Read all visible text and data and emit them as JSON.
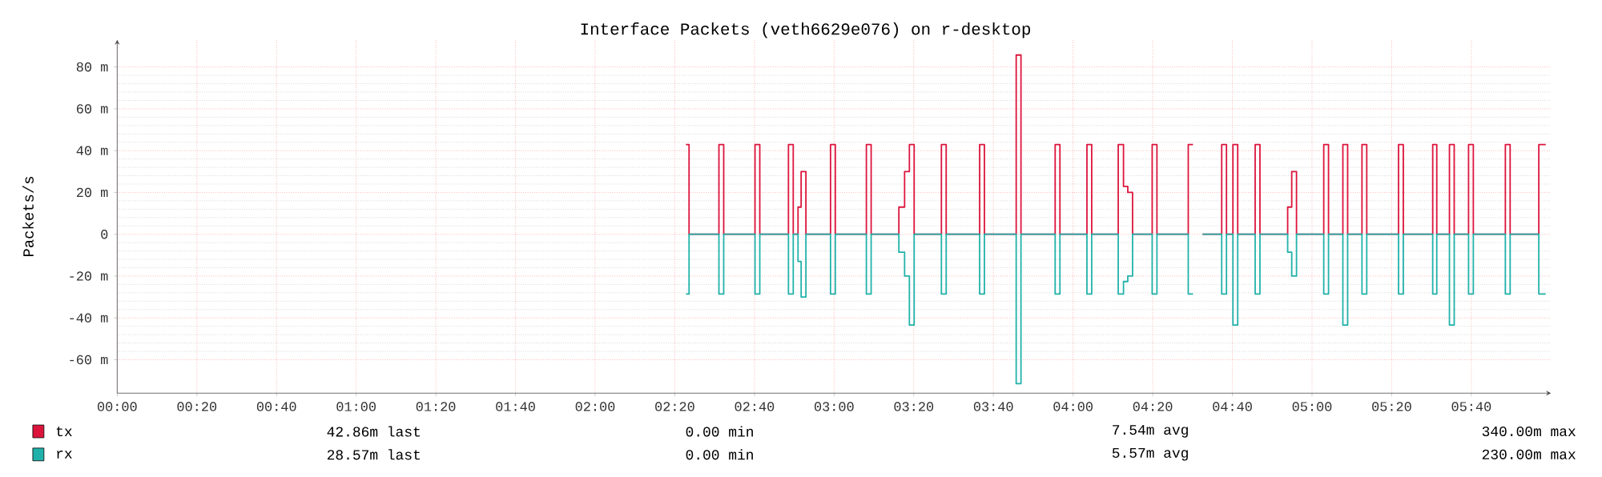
{
  "chart_data": {
    "type": "step",
    "title": "Interface Packets (veth6629e076) on r-desktop",
    "ylabel": "Packets/s",
    "x": [
      2.38,
      2.393,
      2.518,
      2.538,
      2.669,
      2.689,
      2.809,
      2.829,
      2.849,
      2.862,
      2.882,
      2.985,
      3.005,
      3.135,
      3.155,
      3.271,
      3.295,
      3.315,
      3.335,
      3.449,
      3.469,
      3.609,
      3.629,
      3.762,
      3.782,
      3.925,
      3.945,
      4.058,
      4.078,
      4.189,
      4.211,
      4.229,
      4.249,
      4.331,
      4.351,
      4.482,
      4.502,
      4.542,
      4.622,
      4.642,
      4.669,
      4.689,
      4.762,
      4.782,
      4.898,
      4.915,
      4.935,
      5.049,
      5.069,
      5.129,
      5.149,
      5.209,
      5.229,
      5.362,
      5.382,
      5.505,
      5.522,
      5.575,
      5.595,
      5.655,
      5.675,
      5.809,
      5.829,
      5.949,
      5.978
    ],
    "series": [
      {
        "name": "tx",
        "color": "#dc143c",
        "values": [
          42.86,
          0,
          42.86,
          0,
          42.86,
          0,
          42.86,
          0,
          13,
          30,
          0,
          42.86,
          0,
          42.86,
          0,
          13,
          30,
          42.86,
          0,
          42.86,
          0,
          42.86,
          0,
          85.71,
          0,
          42.86,
          0,
          42.86,
          0,
          42.86,
          22.86,
          20,
          0,
          42.86,
          0,
          42.86,
          null,
          0,
          42.86,
          0,
          42.86,
          0,
          42.86,
          0,
          13,
          30,
          0,
          42.86,
          0,
          42.86,
          0,
          42.86,
          0,
          42.86,
          0,
          42.86,
          0,
          42.86,
          0,
          42.86,
          0,
          42.86,
          0,
          42.86,
          42.86
        ]
      },
      {
        "name": "rx",
        "color": "#20b2aa",
        "values": [
          -28.57,
          0,
          -28.57,
          0,
          -28.57,
          0,
          -28.57,
          0,
          -13,
          -30,
          0,
          -28.57,
          0,
          -28.57,
          0,
          -8.6,
          -20,
          -43.4,
          0,
          -28.57,
          0,
          -28.57,
          0,
          -71.43,
          0,
          -28.57,
          0,
          -28.57,
          0,
          -28.57,
          -22.6,
          -20,
          0,
          -28.57,
          0,
          -28.57,
          null,
          0,
          -28.57,
          0,
          -43.4,
          0,
          -28.57,
          0,
          -8.6,
          -20,
          0,
          -28.57,
          0,
          -43.4,
          0,
          -28.57,
          0,
          -28.57,
          0,
          -28.57,
          0,
          -43.4,
          0,
          -28.57,
          0,
          -28.57,
          0,
          -28.57,
          -28.57
        ]
      }
    ],
    "xlim": [
      0,
      6
    ],
    "ylim": [
      -76,
      93
    ],
    "xticks": [
      {
        "value": 0,
        "label": "00:00"
      },
      {
        "value": 0.3333,
        "label": "00:20"
      },
      {
        "value": 0.6667,
        "label": "00:40"
      },
      {
        "value": 1,
        "label": "01:00"
      },
      {
        "value": 1.3333,
        "label": "01:20"
      },
      {
        "value": 1.6667,
        "label": "01:40"
      },
      {
        "value": 2,
        "label": "02:00"
      },
      {
        "value": 2.3333,
        "label": "02:20"
      },
      {
        "value": 2.6667,
        "label": "02:40"
      },
      {
        "value": 3,
        "label": "03:00"
      },
      {
        "value": 3.3333,
        "label": "03:20"
      },
      {
        "value": 3.6667,
        "label": "03:40"
      },
      {
        "value": 4,
        "label": "04:00"
      },
      {
        "value": 4.3333,
        "label": "04:20"
      },
      {
        "value": 4.6667,
        "label": "04:40"
      },
      {
        "value": 5,
        "label": "05:00"
      },
      {
        "value": 5.3333,
        "label": "05:20"
      },
      {
        "value": 5.6667,
        "label": "05:40"
      }
    ],
    "yticks": [
      {
        "value": -60,
        "label": "-60 m"
      },
      {
        "value": -40,
        "label": "-40 m"
      },
      {
        "value": -20,
        "label": "-20 m"
      },
      0,
      {
        "value": 20,
        "label": "20 m"
      },
      {
        "value": 40,
        "label": "40 m"
      },
      {
        "value": 60,
        "label": "60 m"
      },
      {
        "value": 80,
        "label": "80 m"
      }
    ],
    "grid": true,
    "legend": "bottom",
    "marker": "none",
    "annotations": [
      "42.86m last",
      "0.00 min",
      "7.54m avg",
      "340.00m max",
      "28.57m last",
      "0.00 min",
      "5.57m avg",
      "230.00m max"
    ]
  }
}
